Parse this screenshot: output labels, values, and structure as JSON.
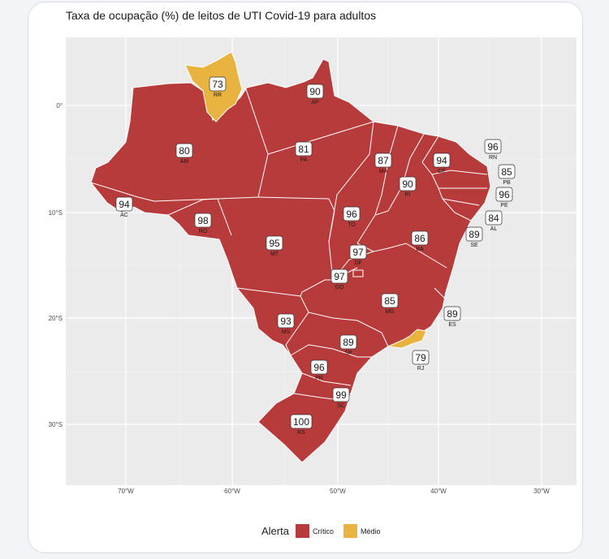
{
  "chart_data": {
    "type": "choropleth-map",
    "title": "Taxa de ocupação (%) de leitos de UTI Covid-19 para adultos",
    "x_ticks": [
      "70°W",
      "60°W",
      "50°W",
      "40°W",
      "30°W"
    ],
    "y_ticks": [
      "0°",
      "10°S",
      "20°S",
      "30°S"
    ],
    "legend": {
      "title": "Alerta",
      "position": "bottom",
      "entries": [
        {
          "label": "Crítico",
          "color": "#b83b3b"
        },
        {
          "label": "Médio",
          "color": "#e9b33f"
        }
      ]
    },
    "states": [
      {
        "uf": "RR",
        "value": 73,
        "alert": "Médio"
      },
      {
        "uf": "AP",
        "value": 90,
        "alert": "Crítico"
      },
      {
        "uf": "AM",
        "value": 80,
        "alert": "Crítico"
      },
      {
        "uf": "PA",
        "value": 81,
        "alert": "Crítico"
      },
      {
        "uf": "MA",
        "value": 87,
        "alert": "Crítico"
      },
      {
        "uf": "CE",
        "value": 94,
        "alert": "Crítico"
      },
      {
        "uf": "RN",
        "value": 96,
        "alert": "Crítico"
      },
      {
        "uf": "PB",
        "value": 85,
        "alert": "Crítico"
      },
      {
        "uf": "PE",
        "value": 96,
        "alert": "Crítico"
      },
      {
        "uf": "PI",
        "value": 90,
        "alert": "Crítico"
      },
      {
        "uf": "AC",
        "value": 94,
        "alert": "Crítico"
      },
      {
        "uf": "RO",
        "value": 98,
        "alert": "Crítico"
      },
      {
        "uf": "TO",
        "value": 96,
        "alert": "Crítico"
      },
      {
        "uf": "AL",
        "value": 84,
        "alert": "Crítico"
      },
      {
        "uf": "SE",
        "value": 89,
        "alert": "Crítico"
      },
      {
        "uf": "BA",
        "value": 86,
        "alert": "Crítico"
      },
      {
        "uf": "MT",
        "value": 95,
        "alert": "Crítico"
      },
      {
        "uf": "DF",
        "value": 97,
        "alert": "Crítico"
      },
      {
        "uf": "GO",
        "value": 97,
        "alert": "Crítico"
      },
      {
        "uf": "MG",
        "value": 85,
        "alert": "Crítico"
      },
      {
        "uf": "ES",
        "value": 89,
        "alert": "Crítico"
      },
      {
        "uf": "MS",
        "value": 93,
        "alert": "Crítico"
      },
      {
        "uf": "SP",
        "value": 89,
        "alert": "Crítico"
      },
      {
        "uf": "RJ",
        "value": 79,
        "alert": "Médio"
      },
      {
        "uf": "PR",
        "value": 96,
        "alert": "Crítico"
      },
      {
        "uf": "SC",
        "value": 99,
        "alert": "Crítico"
      },
      {
        "uf": "RS",
        "value": 100,
        "alert": "Crítico"
      }
    ]
  }
}
